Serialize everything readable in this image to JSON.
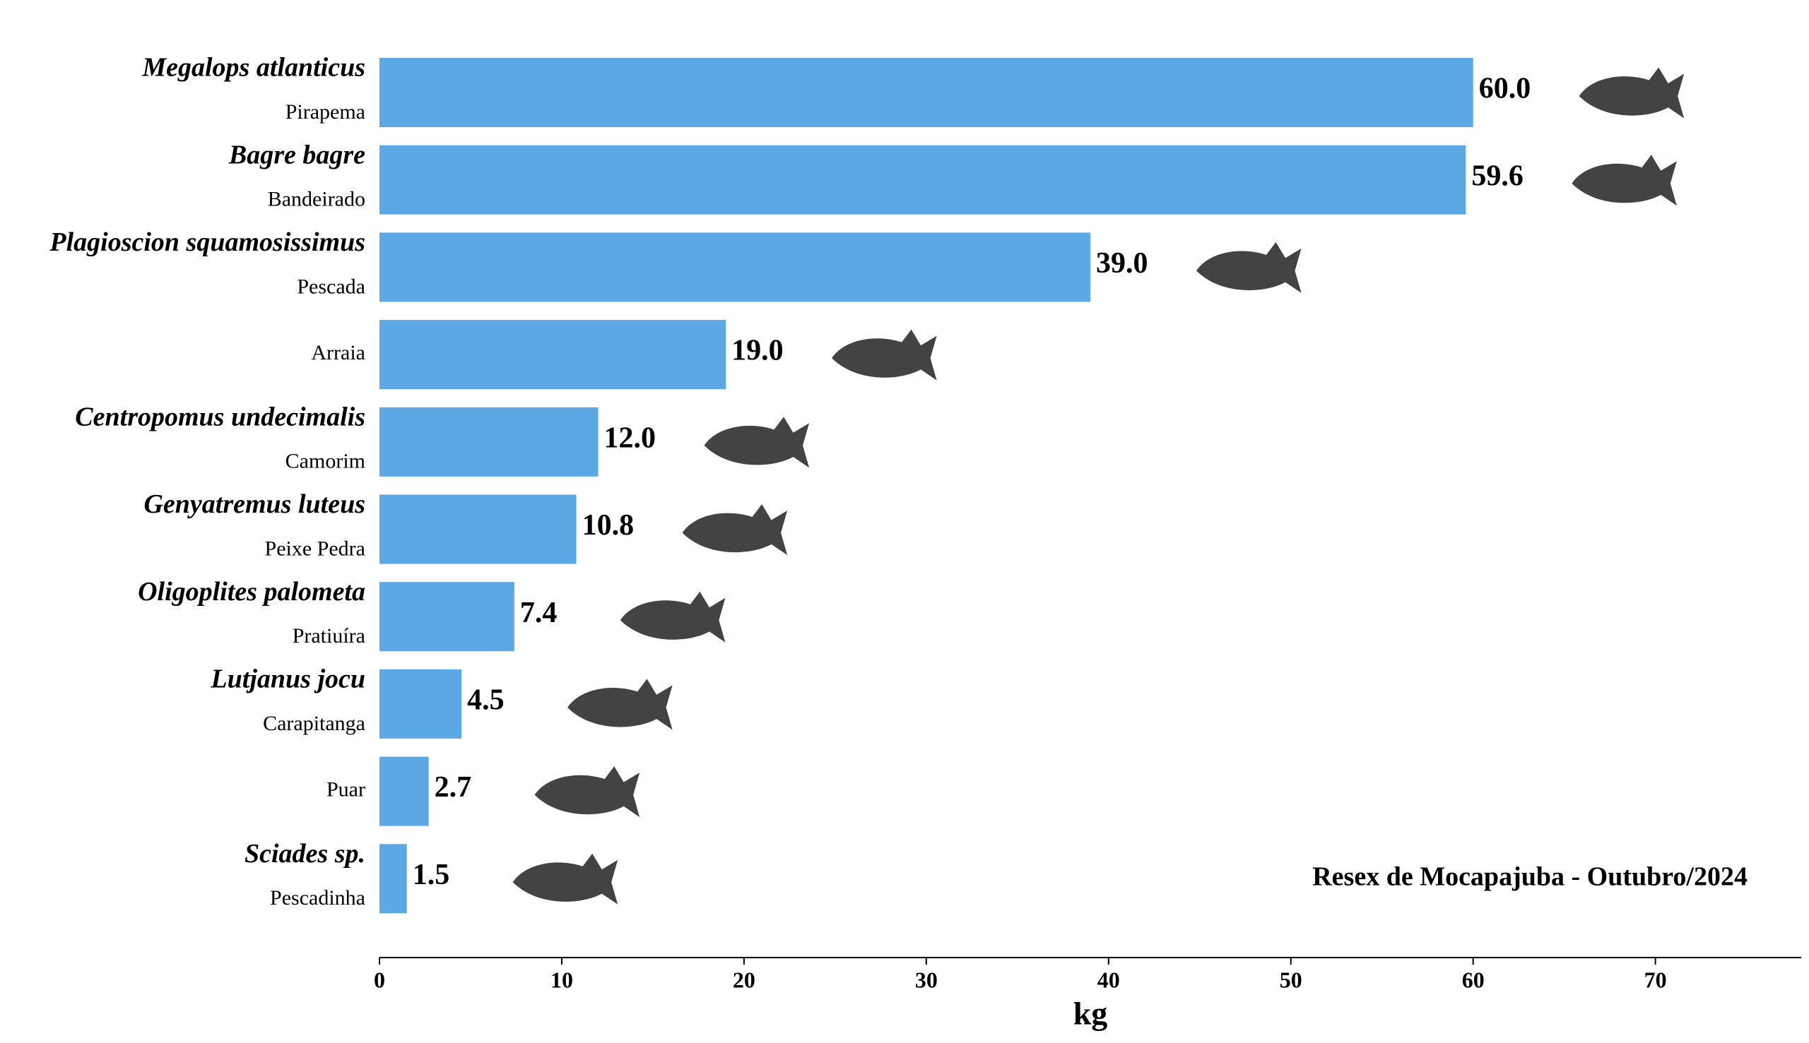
{
  "chart_data": {
    "type": "barh",
    "categories": [
      "Pirapema",
      "Bandeirado",
      "Pescada",
      "Arraia",
      "Camorim",
      "Peixe Pedra",
      "Pratiuíra",
      "Carapitanga",
      "Puar",
      "Pescadinha"
    ],
    "scientific_names": [
      "Megalops atlanticus",
      "Bagre bagre",
      "Plagioscion squamosissimus",
      null,
      "Centropomus undecimalis",
      "Genyatremus luteus",
      "Oligoplites palometa",
      "Lutjanus jocu",
      null,
      "Sciades sp."
    ],
    "values": [
      60.0,
      59.6,
      39.0,
      19.0,
      12.0,
      10.8,
      7.4,
      4.5,
      2.7,
      1.5
    ],
    "value_labels": [
      "60.0",
      "59.6",
      "39.0",
      "19.0",
      "12.0",
      "10.8",
      "7.4",
      "4.5",
      "2.7",
      "1.5"
    ],
    "color": "#5ba8e4",
    "xlabel": "kg",
    "xlim": [
      0,
      78
    ],
    "xticks": [
      0,
      10,
      20,
      30,
      40,
      50,
      60,
      70
    ],
    "annotation": "Resex de Mocapajuba - Outubro/2024"
  }
}
